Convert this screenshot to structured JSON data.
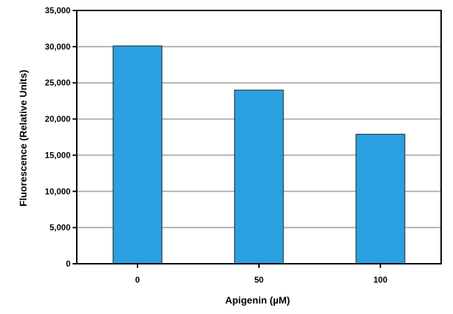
{
  "chart_data": {
    "type": "bar",
    "title": "",
    "xlabel": "Apigenin (µM)",
    "ylabel": "Fluorescence (Relative Units)",
    "categories": [
      "0",
      "50",
      "100"
    ],
    "values": [
      30100,
      24000,
      17900
    ],
    "ylim": [
      0,
      35000
    ],
    "yticks": [
      0,
      5000,
      10000,
      15000,
      20000,
      25000,
      30000,
      35000
    ],
    "ytick_labels": [
      "0",
      "5,000",
      "10,000",
      "15,000",
      "20,000",
      "25,000",
      "30,000",
      "35,000"
    ],
    "grid": true,
    "legend": "none",
    "colors": {
      "bar": "#2ba0e0",
      "bar_edge": "#1a1a1a",
      "grid": "#b0b0b0",
      "axis": "#000000"
    }
  }
}
